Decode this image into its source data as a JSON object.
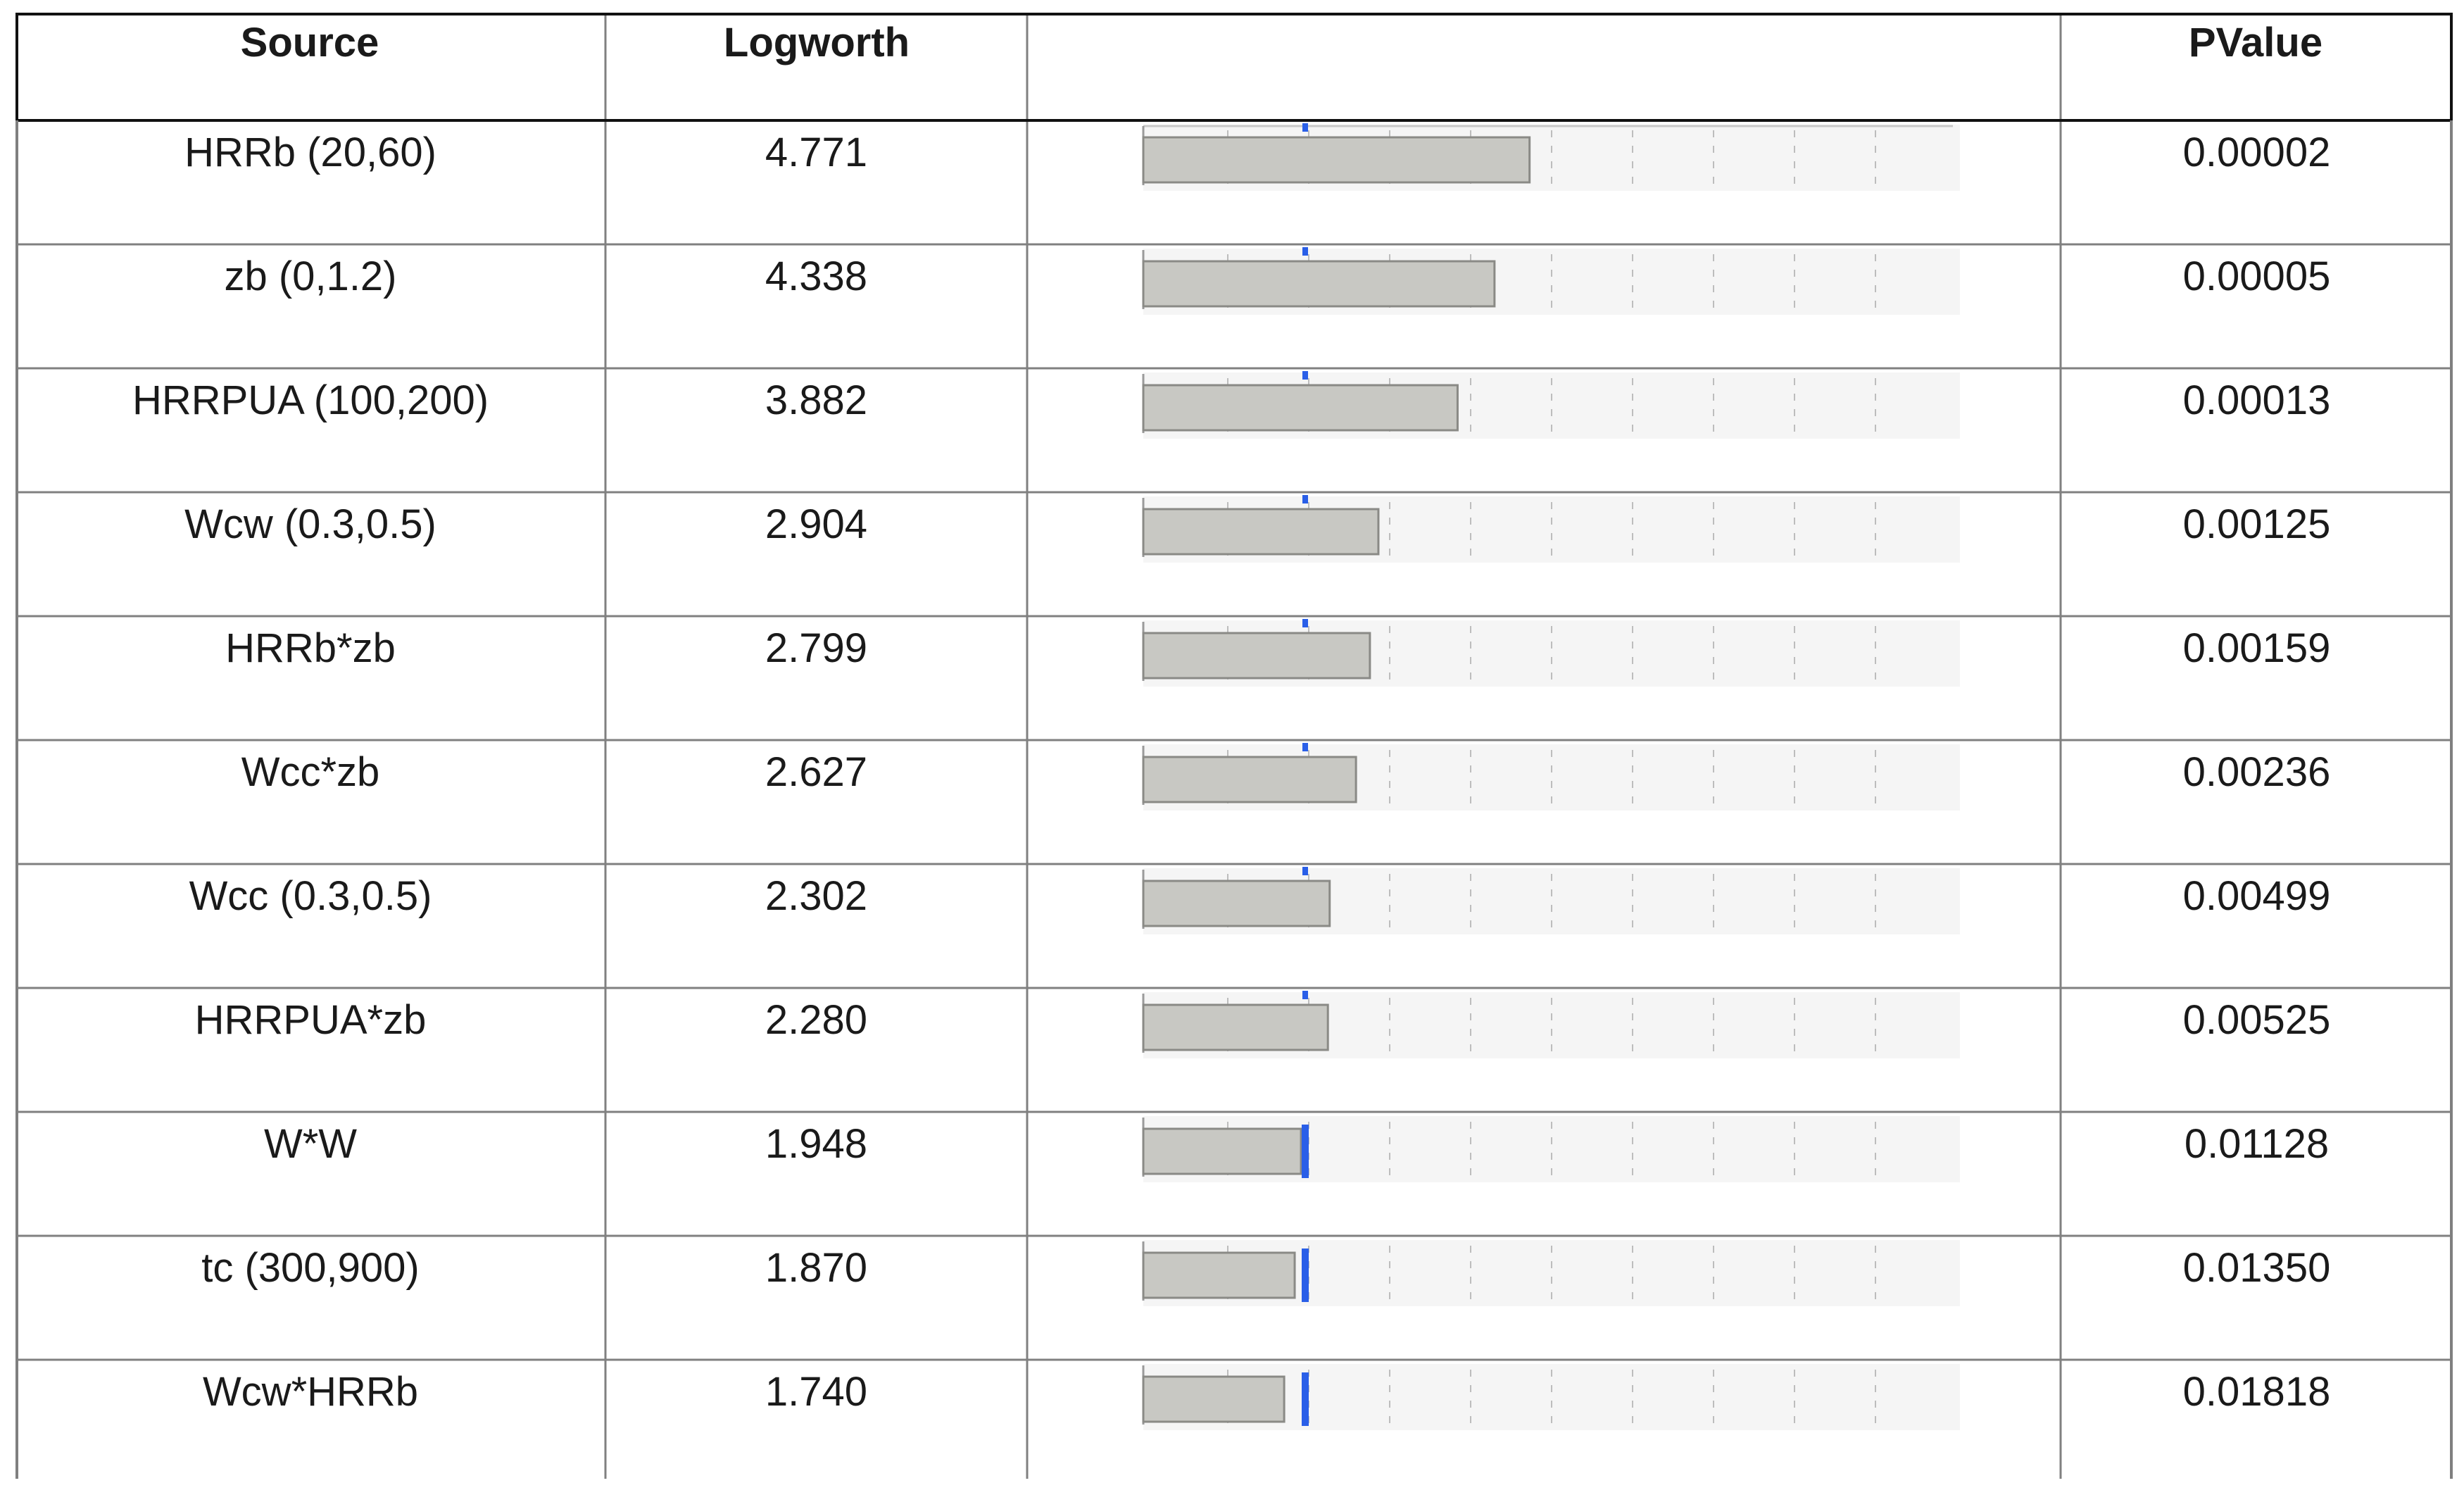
{
  "table": {
    "headers": {
      "source": "Source",
      "logworth": "Logworth",
      "bar": "",
      "pvalue": "PValue"
    }
  },
  "chart_data": {
    "type": "bar",
    "orientation": "horizontal",
    "categories": [
      "HRRb (20,60)",
      "zb (0,1.2)",
      "HRRPUA (100,200)",
      "Wcw (0.3,0.5)",
      "HRRb*zb",
      "Wcc*zb",
      "Wcc (0.3,0.5)",
      "HRRPUA*zb",
      "W*W",
      "tc (300,900)",
      "Wcw*HRRb"
    ],
    "series": [
      {
        "values": [
          4.771,
          4.338,
          3.882,
          2.904,
          2.799,
          2.627,
          2.302,
          2.28,
          1.948,
          1.87,
          1.74
        ]
      }
    ],
    "logworth_labels": [
      "4.771",
      "4.338",
      "3.882",
      "2.904",
      "2.799",
      "2.627",
      "2.302",
      "2.280",
      "1.948",
      "1.870",
      "1.740"
    ],
    "pvalue_labels": [
      "0.00002",
      "0.00005",
      "0.00013",
      "0.00125",
      "0.00159",
      "0.00236",
      "0.00499",
      "0.00525",
      "0.01128",
      "0.01350",
      "0.01818"
    ],
    "xlim": [
      0,
      10
    ],
    "reference_value": 2,
    "grid": true,
    "legend": "none",
    "colors": {
      "bar_fill": "#c8c8c3",
      "bar_stroke": "#8a8a86",
      "track_fill": "#f5f5f5",
      "grid_line": "#bdbdbd",
      "reference_marker": "#2a5fe8",
      "table_border": "#808080",
      "header_border": "#111111"
    }
  }
}
